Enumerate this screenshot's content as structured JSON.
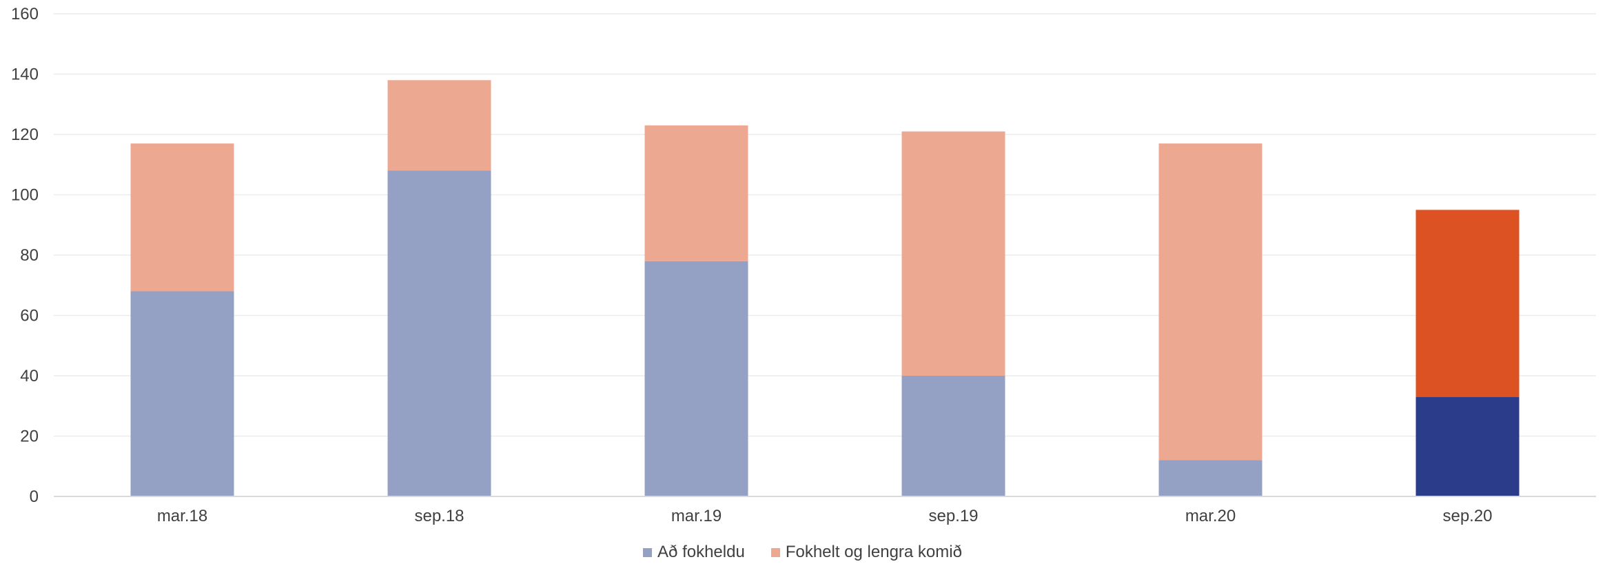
{
  "chart_data": {
    "type": "bar",
    "stacked": true,
    "categories": [
      "mar.18",
      "sep.18",
      "mar.19",
      "sep.19",
      "mar.20",
      "sep.20"
    ],
    "series": [
      {
        "name": "Að fokheldu",
        "values": [
          68,
          108,
          78,
          40,
          12,
          33
        ],
        "color": "#95a0c5",
        "highlight_color": "#2b3d8a"
      },
      {
        "name": "Fokhelt og lengra komið",
        "values": [
          49,
          30,
          45,
          81,
          105,
          62
        ],
        "color": "#eda892",
        "highlight_color": "#dc5223"
      }
    ],
    "highlighted_category": "sep.20",
    "ylim": [
      0,
      160
    ],
    "yticks": [
      0,
      20,
      40,
      60,
      80,
      100,
      120,
      140,
      160
    ],
    "grid": true,
    "legend_position": "bottom"
  }
}
